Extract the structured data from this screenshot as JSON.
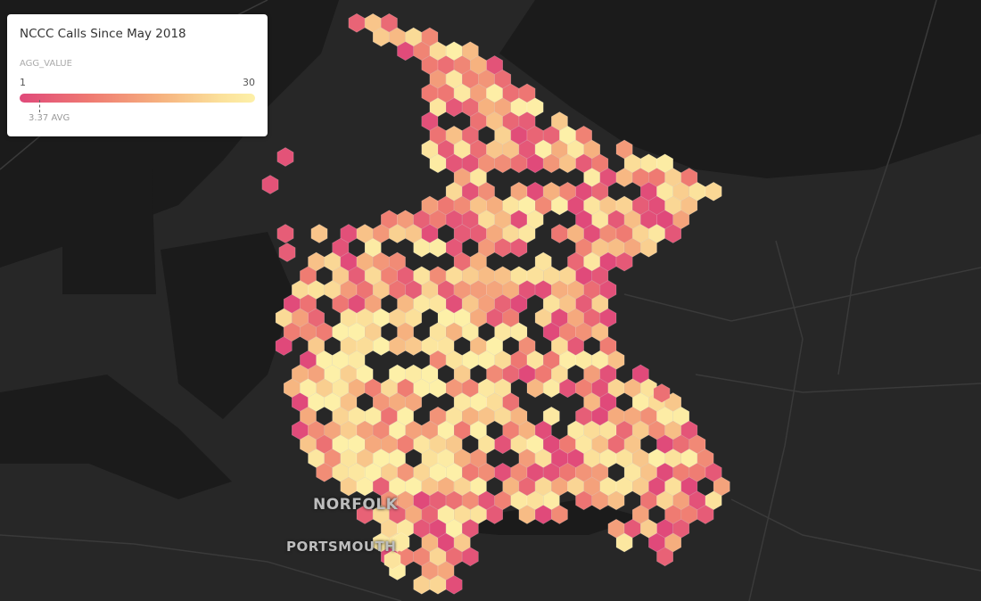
{
  "legend": {
    "title": "NCCC Calls Since May 2018",
    "attribute": "AGG_VALUE",
    "min": "1",
    "max": "30",
    "avg_label": "3.37 AVG",
    "avg_value": 3.37,
    "colors": [
      "#e0497a",
      "#ef7a72",
      "#f6b27f",
      "#fbe09a",
      "#fdf0a8"
    ]
  },
  "map": {
    "labels": {
      "norfolk": "NORFOLK",
      "portsmouth": "PORTSMOUTH"
    },
    "land_color": "#272727",
    "water_color": "#1b1b1b",
    "road_color": "#3a3a3a"
  }
}
